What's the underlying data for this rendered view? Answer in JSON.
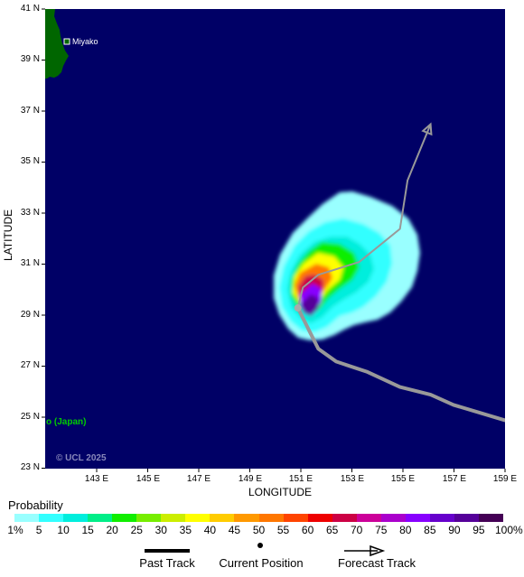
{
  "map": {
    "latitude_ticks": [
      "41 N",
      "39 N",
      "37 N",
      "35 N",
      "33 N",
      "31 N",
      "29 N",
      "27 N",
      "25 N",
      "23 N"
    ],
    "longitude_ticks": [
      "143 E",
      "145 E",
      "147 E",
      "149 E",
      "151 E",
      "153 E",
      "155 E",
      "157 E",
      "159 E"
    ],
    "lat_axis_title": "LATITUDE",
    "lon_axis_title": "LONGITUDE",
    "place_label": "Miyako",
    "region_label": "o (Japan)",
    "credit": "© UCL 2025",
    "colors": {
      "ocean": "#000066",
      "land": "#006600",
      "past_track": "#999999",
      "forecast_track": "#999999"
    },
    "storm_center": {
      "lat": 29.3,
      "lon": 150.9
    },
    "past_track": [
      {
        "lat": 29.3,
        "lon": 150.9
      },
      {
        "lat": 28.3,
        "lon": 151.4
      },
      {
        "lat": 27.7,
        "lon": 151.7
      },
      {
        "lat": 27.2,
        "lon": 152.4
      },
      {
        "lat": 26.8,
        "lon": 153.6
      },
      {
        "lat": 26.2,
        "lon": 154.9
      },
      {
        "lat": 25.9,
        "lon": 156.1
      },
      {
        "lat": 25.5,
        "lon": 157.0
      },
      {
        "lat": 24.9,
        "lon": 159.0
      }
    ],
    "forecast_track": [
      {
        "lat": 29.3,
        "lon": 150.9
      },
      {
        "lat": 30.1,
        "lon": 151.1
      },
      {
        "lat": 30.6,
        "lon": 151.7
      },
      {
        "lat": 31.1,
        "lon": 153.3
      },
      {
        "lat": 32.4,
        "lon": 154.9
      },
      {
        "lat": 34.3,
        "lon": 155.2
      },
      {
        "lat": 36.5,
        "lon": 156.1
      }
    ]
  },
  "legend": {
    "title": "Probability",
    "labels": [
      "1%",
      "5",
      "10",
      "15",
      "20",
      "25",
      "30",
      "35",
      "40",
      "45",
      "50",
      "55",
      "60",
      "65",
      "70",
      "75",
      "80",
      "85",
      "90",
      "95",
      "100%"
    ],
    "colors": [
      "#99ffff",
      "#33ffff",
      "#00eedd",
      "#00ee88",
      "#11ee00",
      "#77ee00",
      "#ccee00",
      "#ffff00",
      "#ffcc00",
      "#ff9900",
      "#ff7700",
      "#ff4400",
      "#ee0000",
      "#cc0044",
      "#cc0099",
      "#aa00cc",
      "#8800ff",
      "#6600cc",
      "#550099",
      "#440055"
    ],
    "key_items": [
      "Past Track",
      "Current Position",
      "Forecast Track"
    ]
  }
}
